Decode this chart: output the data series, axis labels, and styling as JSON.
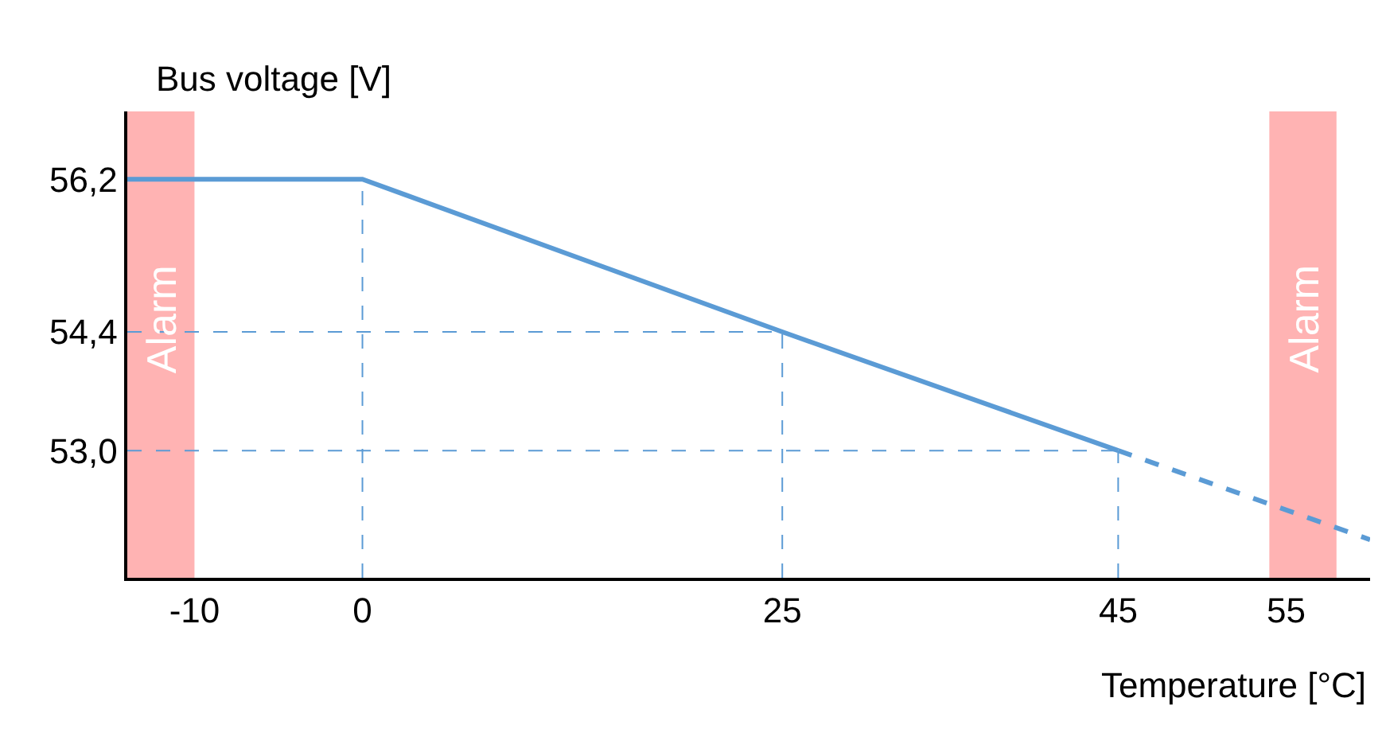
{
  "chart_data": {
    "type": "line",
    "xlabel": "Temperature [°C]",
    "ylabel": "Bus voltage [V]",
    "xlim": [
      -14,
      60
    ],
    "xticks": [
      -10,
      0,
      25,
      45,
      55
    ],
    "ylim": [
      51.5,
      57
    ],
    "yticks": [
      {
        "value": 56.2,
        "label": "56,2"
      },
      {
        "value": 54.4,
        "label": "54,4"
      },
      {
        "value": 53.0,
        "label": "53,0"
      }
    ],
    "series": [
      {
        "color": "#5b9bd5",
        "x": [
          -14,
          0,
          25,
          45
        ],
        "values": [
          56.2,
          56.2,
          54.4,
          53.0
        ],
        "line_style": "solid"
      },
      {
        "color": "#5b9bd5",
        "x": [
          45,
          60
        ],
        "values": [
          53.0,
          51.95
        ],
        "line_style": "dashed"
      }
    ],
    "ref_lines": [
      {
        "axis": "x",
        "value": 0,
        "color": "#5b9bd5",
        "line_style": "dashed"
      },
      {
        "axis": "x",
        "value": 25,
        "color": "#5b9bd5",
        "line_style": "dashed"
      },
      {
        "axis": "x",
        "value": 45,
        "color": "#5b9bd5",
        "line_style": "dashed"
      },
      {
        "axis": "y",
        "value": 54.4,
        "color": "#5b9bd5",
        "line_style": "dashed"
      },
      {
        "axis": "y",
        "value": 53.0,
        "color": "#5b9bd5",
        "line_style": "dashed"
      }
    ],
    "bands": [
      {
        "axis": "x",
        "from": -14,
        "to": -10,
        "label": "Alarm",
        "color": "#ffb3b3"
      },
      {
        "axis": "x",
        "from": 54,
        "to": 58,
        "label": "Alarm",
        "color": "#ffb3b3"
      }
    ],
    "grid": false,
    "marker": "none"
  }
}
